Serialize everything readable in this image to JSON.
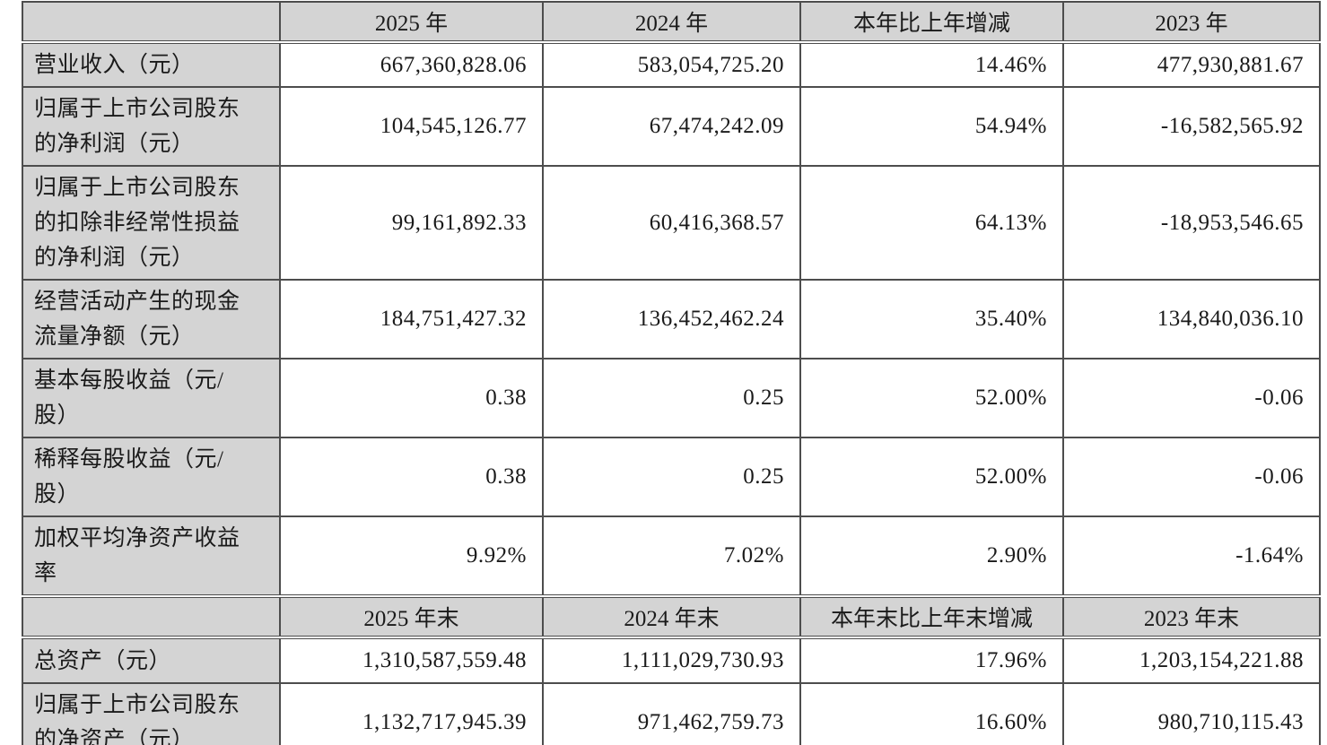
{
  "colors": {
    "header_bg": "#d4d4d4",
    "border": "#4d4d4d",
    "text": "#1a1a1a"
  },
  "table": {
    "header": [
      "",
      "2025 年",
      "2024 年",
      "本年比上年增减",
      "2023 年"
    ],
    "subheader": [
      "",
      "2025 年末",
      "2024 年末",
      "本年末比上年末增减",
      "2023 年末"
    ],
    "rows": [
      {
        "label": "营业收入（元）",
        "values": [
          "667,360,828.06",
          "583,054,725.20",
          "14.46%",
          "477,930,881.67"
        ]
      },
      {
        "label": "归属于上市公司股东\n的净利润（元）",
        "values": [
          "104,545,126.77",
          "67,474,242.09",
          "54.94%",
          "-16,582,565.92"
        ]
      },
      {
        "label": "归属于上市公司股东\n的扣除非经常性损益\n的净利润（元）",
        "values": [
          "99,161,892.33",
          "60,416,368.57",
          "64.13%",
          "-18,953,546.65"
        ]
      },
      {
        "label": "经营活动产生的现金\n流量净额（元）",
        "values": [
          "184,751,427.32",
          "136,452,462.24",
          "35.40%",
          "134,840,036.10"
        ]
      },
      {
        "label": "基本每股收益（元/\n股）",
        "values": [
          "0.38",
          "0.25",
          "52.00%",
          "-0.06"
        ]
      },
      {
        "label": "稀释每股收益（元/\n股）",
        "values": [
          "0.38",
          "0.25",
          "52.00%",
          "-0.06"
        ]
      },
      {
        "label": "加权平均净资产收益\n率",
        "values": [
          "9.92%",
          "7.02%",
          "2.90%",
          "-1.64%"
        ]
      },
      {
        "label": "总资产（元）",
        "values": [
          "1,310,587,559.48",
          "1,111,029,730.93",
          "17.96%",
          "1,203,154,221.88"
        ]
      },
      {
        "label": "归属于上市公司股东\n的净资产（元）",
        "values": [
          "1,132,717,945.39",
          "971,462,759.73",
          "16.60%",
          "980,710,115.43"
        ]
      }
    ]
  }
}
